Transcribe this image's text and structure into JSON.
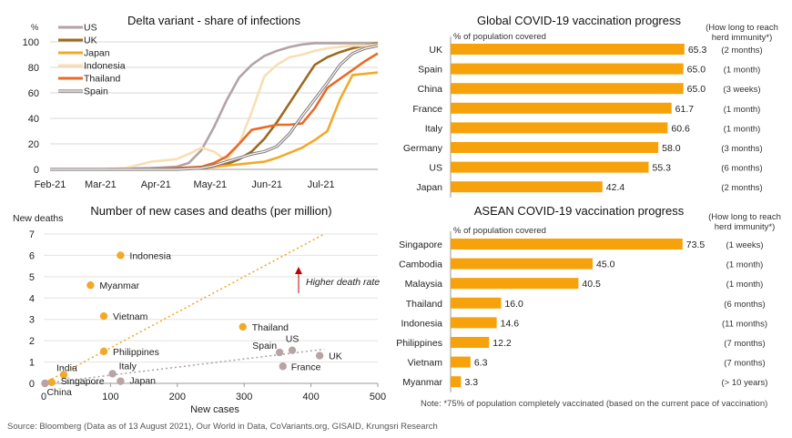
{
  "chart_data": [
    {
      "type": "line",
      "title": "Delta variant - share of infections",
      "ylabel": "%",
      "ylim": [
        0,
        100
      ],
      "yticks": [
        0,
        20,
        40,
        60,
        80,
        100
      ],
      "xlim": [
        0,
        26
      ],
      "xticks": [
        {
          "x": 0,
          "label": "Feb-21"
        },
        {
          "x": 4,
          "label": "Mar-21"
        },
        {
          "x": 8.4,
          "label": "Apr-21"
        },
        {
          "x": 12.7,
          "label": "May-21"
        },
        {
          "x": 17.2,
          "label": "Jun-21"
        },
        {
          "x": 21.5,
          "label": "Jul-21"
        }
      ],
      "grid": true,
      "legend": "top-left",
      "series": [
        {
          "name": "US",
          "color": "#b3a3a7",
          "x": [
            0,
            4,
            8,
            10,
            11,
            12,
            13,
            14,
            15,
            16,
            17,
            18,
            19,
            20,
            21,
            22,
            23,
            24,
            25,
            26
          ],
          "y": [
            0,
            0,
            1,
            2,
            5,
            15,
            33,
            54,
            72,
            82,
            89,
            93,
            96,
            98,
            99,
            99,
            99,
            99,
            99,
            99
          ]
        },
        {
          "name": "UK",
          "color": "#9b6a1f",
          "x": [
            0,
            4,
            8,
            10,
            12,
            13,
            14,
            15,
            16,
            17,
            18,
            19,
            20,
            21,
            22,
            23,
            24,
            25,
            26
          ],
          "y": [
            0,
            0,
            0,
            0,
            1,
            2,
            4,
            8,
            14,
            24,
            37,
            52,
            67,
            82,
            88,
            92,
            95,
            97,
            99
          ]
        },
        {
          "name": "Japan",
          "color": "#f3a928",
          "x": [
            0,
            4,
            8,
            10,
            12,
            13,
            14,
            15,
            16,
            17,
            18,
            19,
            20,
            21,
            22,
            23,
            24,
            25,
            26
          ],
          "y": [
            0,
            0,
            0,
            0,
            1,
            2,
            3,
            4,
            5,
            6,
            9,
            13,
            17,
            23,
            30,
            55,
            74,
            75,
            76
          ]
        },
        {
          "name": "Indonesia",
          "color": "#f8dfb3",
          "x": [
            0,
            4,
            6,
            8,
            10,
            11,
            12,
            13,
            14,
            15,
            16,
            17,
            18,
            19,
            20,
            21,
            22,
            23,
            24,
            25,
            26
          ],
          "y": [
            0,
            0,
            1,
            6,
            8,
            12,
            17,
            14,
            7,
            20,
            45,
            73,
            82,
            88,
            90,
            93,
            95,
            96,
            97,
            97,
            98
          ]
        },
        {
          "name": "Thailand",
          "color": "#ea6a27",
          "x": [
            0,
            4,
            8,
            10,
            12,
            13,
            14,
            15,
            16,
            17,
            18,
            19,
            20,
            21,
            22,
            23,
            24,
            25,
            26
          ],
          "y": [
            0,
            0,
            0,
            1,
            2,
            5,
            10,
            20,
            31,
            33,
            35,
            35,
            36,
            48,
            64,
            71,
            78,
            85,
            91
          ]
        },
        {
          "name": "Spain",
          "color": "#7f7777",
          "x": [
            0,
            4,
            8,
            10,
            12,
            13,
            14,
            15,
            16,
            17,
            18,
            19,
            20,
            21,
            22,
            23,
            24,
            25,
            26
          ],
          "y": [
            0,
            0,
            0,
            0,
            1,
            3,
            6,
            9,
            12,
            14,
            18,
            28,
            42,
            55,
            68,
            82,
            91,
            95,
            97
          ]
        }
      ]
    },
    {
      "type": "scatter",
      "title": "Number of new cases and deaths (per million)",
      "xlabel": "New cases",
      "ylabel": "New deaths",
      "xlim": [
        0,
        500
      ],
      "ylim": [
        0,
        7
      ],
      "xticks": [
        0,
        100,
        200,
        300,
        400,
        500
      ],
      "yticks": [
        0,
        1,
        2,
        3,
        4,
        5,
        6,
        7
      ],
      "annotation": "Higher death rate",
      "points": [
        {
          "label": "Indonesia",
          "x": 115,
          "y": 6.0,
          "group": "ASEAN"
        },
        {
          "label": "Myanmar",
          "x": 70,
          "y": 4.6,
          "group": "ASEAN"
        },
        {
          "label": "Vietnam",
          "x": 90,
          "y": 3.15,
          "group": "ASEAN"
        },
        {
          "label": "Thailand",
          "x": 298,
          "y": 2.65,
          "group": "ASEAN"
        },
        {
          "label": "Philippines",
          "x": 90,
          "y": 1.5,
          "group": "ASEAN"
        },
        {
          "label": "India",
          "x": 30,
          "y": 0.4,
          "group": "ASEAN"
        },
        {
          "label": "Singapore",
          "x": 12,
          "y": 0.05,
          "group": "ASEAN"
        },
        {
          "label": "US",
          "x": 372,
          "y": 1.55,
          "group": "Other"
        },
        {
          "label": "Spain",
          "x": 353,
          "y": 1.45,
          "group": "Other"
        },
        {
          "label": "UK",
          "x": 413,
          "y": 1.3,
          "group": "Other"
        },
        {
          "label": "France",
          "x": 358,
          "y": 0.8,
          "group": "Other"
        },
        {
          "label": "Italy",
          "x": 103,
          "y": 0.45,
          "group": "Other"
        },
        {
          "label": "Japan",
          "x": 115,
          "y": 0.1,
          "group": "Other"
        },
        {
          "label": "China",
          "x": 2,
          "y": 0.0,
          "group": "Other"
        }
      ],
      "trendlines": [
        {
          "color": "#f3a928",
          "from": [
            0,
            0
          ],
          "to": [
            420,
            7.0
          ]
        },
        {
          "color": "#b3a3a7",
          "from": [
            0,
            0
          ],
          "to": [
            420,
            1.6
          ]
        }
      ]
    },
    {
      "type": "bar",
      "title": "Global COVID-19 vaccination progress",
      "subtitle": "% of population covered",
      "side_header": "(How long to reach herd immunity*)",
      "categories": [
        "UK",
        "Spain",
        "China",
        "France",
        "Italy",
        "Germany",
        "US",
        "Japan"
      ],
      "values": [
        65.3,
        65.0,
        65.0,
        61.7,
        60.6,
        58.0,
        55.3,
        42.4
      ],
      "value_labels": [
        "65.3",
        "65.0",
        "65.0",
        "61.7",
        "60.6",
        "58.0",
        "55.3",
        "42.4"
      ],
      "herd_immunity": [
        "(2 months)",
        "(1 month)",
        "(3 weeks)",
        "(1 month)",
        "(1 month)",
        "(3 months)",
        "(6 months)",
        "(2 months)"
      ],
      "xlim": [
        0,
        75
      ],
      "color": "#f7a20b"
    },
    {
      "type": "bar",
      "title": "ASEAN COVID-19 vaccination progress",
      "subtitle": "% of population covered",
      "side_header": "(How long to reach herd immunity*)",
      "categories": [
        "Singapore",
        "Cambodia",
        "Malaysia",
        "Thailand",
        "Indonesia",
        "Philippines",
        "Vietnam",
        "Myanmar"
      ],
      "values": [
        73.5,
        45.0,
        40.5,
        16.0,
        14.6,
        12.2,
        6.3,
        3.3
      ],
      "value_labels": [
        "73.5",
        "45.0",
        "40.5",
        "16.0",
        "14.6",
        "12.2",
        "6.3",
        "3.3"
      ],
      "herd_immunity": [
        "(1 weeks)",
        "(1 month)",
        "(1 month)",
        "(6 months)",
        "(11 months)",
        "(7 months)",
        "(7 months)",
        "(> 10 years)"
      ],
      "xlim": [
        0,
        75
      ],
      "color": "#f7a20b"
    }
  ],
  "footnote": "Note: *75% of population completely vaccinated (based on the current pace of vaccination)",
  "source": "Source: Bloomberg (Data as of 13 August 2021), Our World in Data, CoVariants.org, GISAID, Krungsri Research",
  "colors": {
    "asean_dot": "#f3a928",
    "other_dot": "#b8a4a4",
    "bar": "#f7a20b",
    "annotation": "#c00000"
  }
}
